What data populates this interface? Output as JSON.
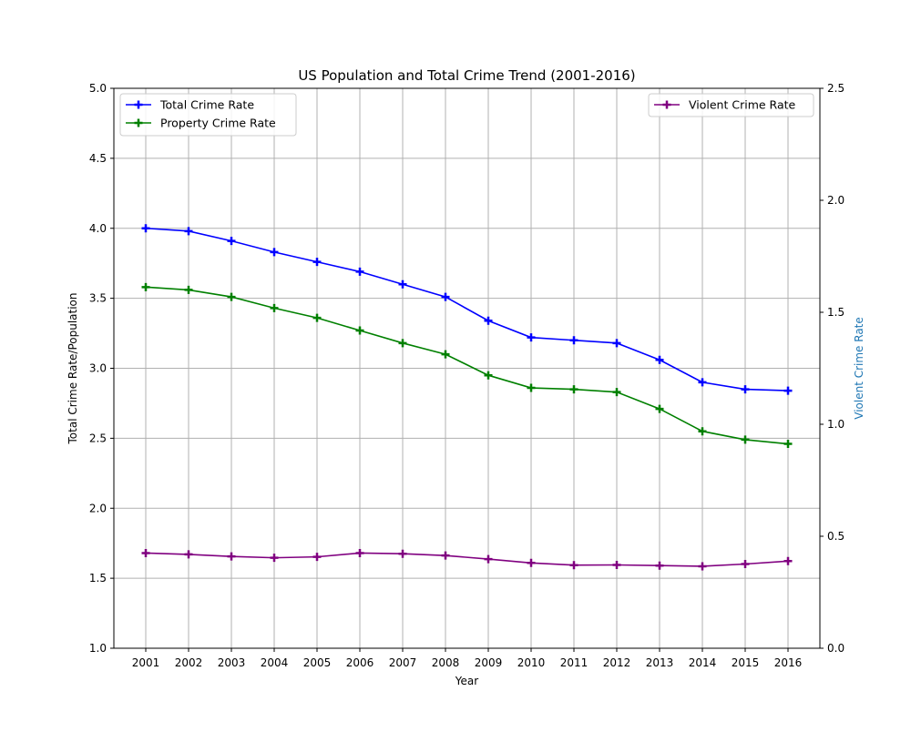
{
  "chart_data": {
    "type": "line",
    "title": "US Population and Total Crime Trend (2001-2016)",
    "xlabel": "Year",
    "ylabel_left": "Total Crime Rate/Population",
    "ylabel_right": "Violent Crime Rate",
    "ylabel_right_color": "#1f77b4",
    "x": [
      "2001",
      "2002",
      "2003",
      "2004",
      "2005",
      "2006",
      "2007",
      "2008",
      "2009",
      "2010",
      "2011",
      "2012",
      "2013",
      "2014",
      "2015",
      "2016"
    ],
    "ylim_left": [
      1.0,
      5.0
    ],
    "yticks_left": [
      "1.0",
      "1.5",
      "2.0",
      "2.5",
      "3.0",
      "3.5",
      "4.0",
      "4.5",
      "5.0"
    ],
    "ylim_right": [
      0.0,
      2.5
    ],
    "yticks_right": [
      "0.0",
      "0.5",
      "1.0",
      "1.5",
      "2.0",
      "2.5"
    ],
    "grid": true,
    "marker": "plus",
    "legend_left_placement": "top-left",
    "legend_right_placement": "top-right",
    "series": [
      {
        "name": "Total Crime Rate",
        "axis": "left",
        "color": "#0000ff",
        "values": [
          4.0,
          3.98,
          3.91,
          3.83,
          3.76,
          3.69,
          3.6,
          3.51,
          3.34,
          3.22,
          3.2,
          3.18,
          3.06,
          2.9,
          2.85,
          2.84
        ]
      },
      {
        "name": "Property Crime Rate",
        "axis": "left",
        "color": "#008000",
        "values": [
          3.58,
          3.56,
          3.51,
          3.43,
          3.36,
          3.27,
          3.18,
          3.1,
          2.95,
          2.86,
          2.85,
          2.83,
          2.71,
          2.55,
          2.49,
          2.46
        ]
      },
      {
        "name": "Violent Crime Rate",
        "axis": "right",
        "color": "#800080",
        "values": [
          0.425,
          0.419,
          0.41,
          0.404,
          0.408,
          0.425,
          0.422,
          0.414,
          0.398,
          0.381,
          0.371,
          0.372,
          0.369,
          0.366,
          0.376,
          0.389
        ]
      }
    ]
  }
}
